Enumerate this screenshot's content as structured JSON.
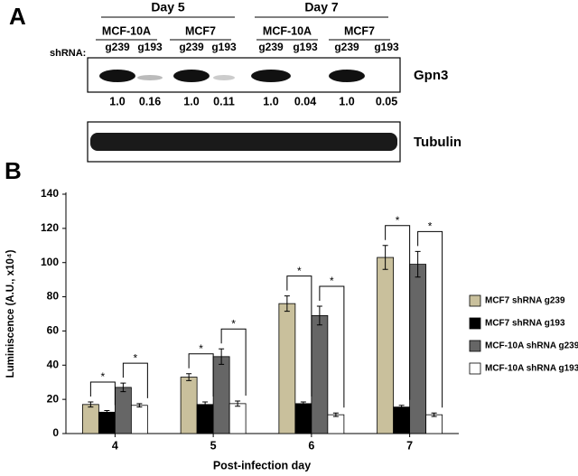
{
  "panel_a": {
    "label": "A",
    "groups": [
      {
        "day": "Day 5",
        "lines": [
          "MCF-10A",
          "MCF7"
        ]
      },
      {
        "day": "Day 7",
        "lines": [
          "MCF-10A",
          "MCF7"
        ]
      }
    ],
    "shrna_label": "shRNA:",
    "lanes": [
      "g239",
      "g193",
      "g239",
      "g193",
      "g239",
      "g193",
      "g239",
      "g193"
    ],
    "blots": [
      {
        "name": "Gpn3",
        "quant": [
          "1.0",
          "0.16",
          "1.0",
          "0.11",
          "1.0",
          "0.04",
          "1.0",
          "0.05"
        ]
      },
      {
        "name": "Tubulin"
      }
    ]
  },
  "chart_data": {
    "type": "bar",
    "panel_label": "B",
    "x_label": "Post-infection day",
    "y_label": "Luminiscence (A.U., x10⁴)",
    "categories": [
      "4",
      "5",
      "6",
      "7"
    ],
    "series": [
      {
        "name": "MCF7 shRNA g239",
        "color": "#c9c09c",
        "values": [
          17,
          33,
          76,
          103
        ],
        "errors": [
          1.5,
          2,
          4.5,
          7
        ]
      },
      {
        "name": "MCF7 shRNA g193",
        "color": "#000000",
        "values": [
          12.5,
          17,
          17.5,
          15.5
        ],
        "errors": [
          1,
          1.5,
          1,
          1
        ]
      },
      {
        "name": "MCF-10A shRNA g239",
        "color": "#666666",
        "values": [
          27,
          45,
          69,
          99
        ],
        "errors": [
          2.5,
          4.5,
          5.5,
          7.5
        ]
      },
      {
        "name": "MCF-10A shRNA g193",
        "color": "#ffffff",
        "values": [
          16.5,
          17.5,
          11,
          11
        ],
        "errors": [
          1,
          1.5,
          1,
          1
        ]
      }
    ],
    "ylim": [
      0,
      140
    ],
    "yticks": [
      0,
      20,
      40,
      60,
      80,
      100,
      120,
      140
    ],
    "annotations": [
      "*",
      "*",
      "*",
      "*",
      "*",
      "*",
      "*",
      "*"
    ]
  }
}
